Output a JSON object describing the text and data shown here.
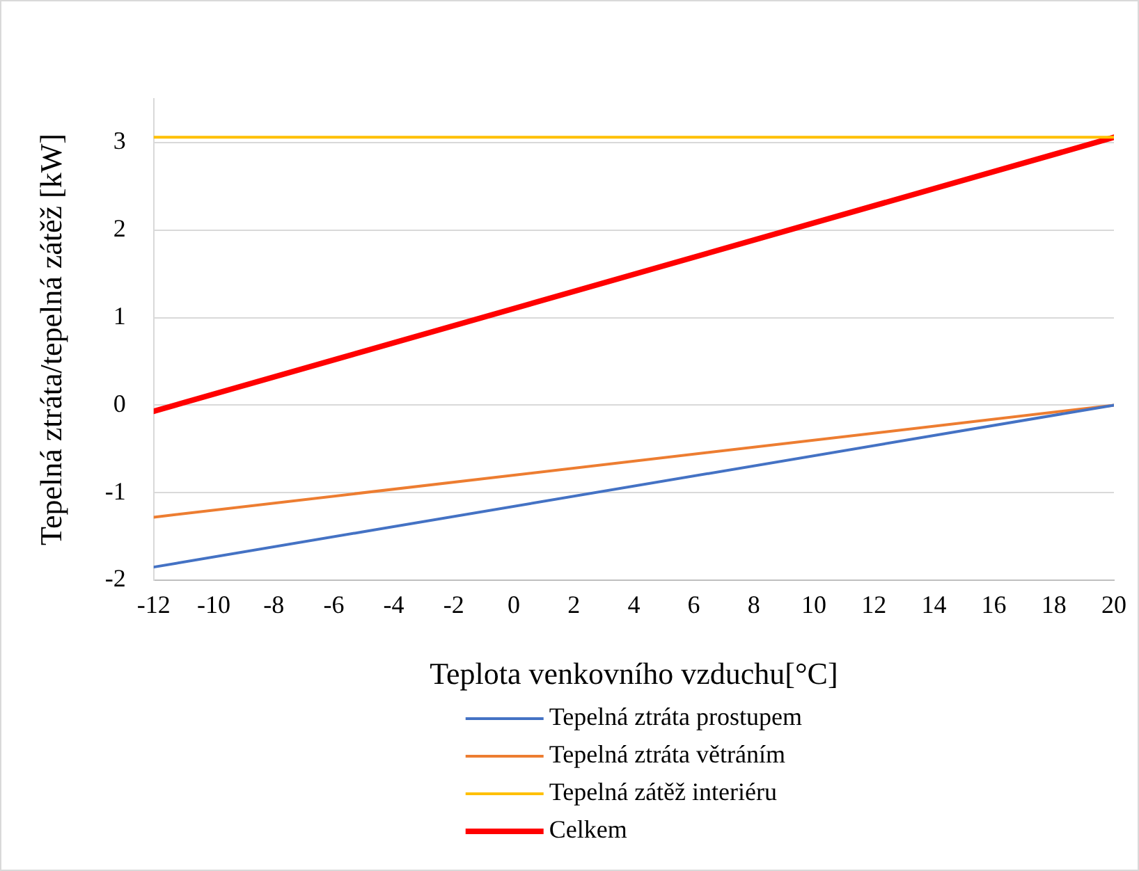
{
  "chart_data": {
    "type": "line",
    "xlabel": "Teplota venkovního vzduchu[°C]",
    "ylabel": "Tepelná ztráta/tepelná zátěž [kW]",
    "x": [
      -12,
      20
    ],
    "xlim": [
      -12,
      20
    ],
    "xticks": [
      -12,
      -10,
      -8,
      -6,
      -4,
      -2,
      0,
      2,
      4,
      6,
      8,
      10,
      12,
      14,
      16,
      18,
      20
    ],
    "ylim": [
      -2,
      3.5
    ],
    "yticks": [
      -2,
      -1,
      0,
      1,
      2,
      3
    ],
    "grid": "y",
    "legend": "bottom",
    "marker": "none",
    "line_style": "solid",
    "series": [
      {
        "name": "Tepelná ztráta prostupem",
        "color": "#4472c4",
        "values": [
          -1.85,
          0
        ]
      },
      {
        "name": "Tepelná ztráta větráním",
        "color": "#ed7d31",
        "values": [
          -1.28,
          0
        ]
      },
      {
        "name": "Tepelná zátěž interiéru",
        "color": "#ffc000",
        "values": [
          3.06,
          3.06
        ]
      },
      {
        "name": "Celkem",
        "color": "#ff0000",
        "values": [
          -0.07,
          3.06
        ]
      }
    ]
  }
}
